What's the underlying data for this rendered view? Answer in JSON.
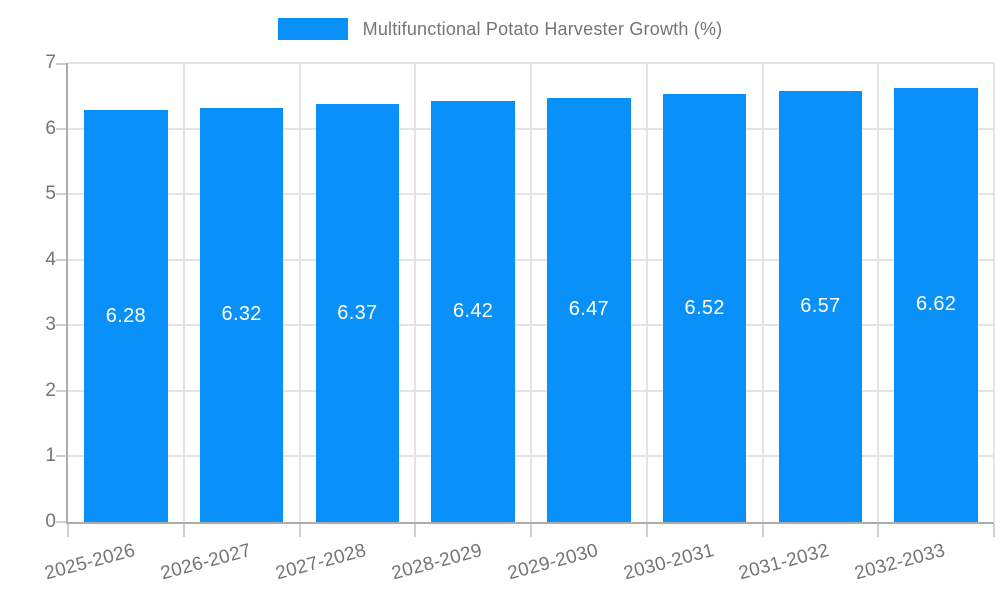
{
  "chart_data": {
    "type": "bar",
    "title": "Multifunctional Potato Harvester Growth (%)",
    "categories": [
      "2025-2026",
      "2026-2027",
      "2027-2028",
      "2028-2029",
      "2029-2030",
      "2030-2031",
      "2031-2032",
      "2032-2033"
    ],
    "values": [
      6.28,
      6.32,
      6.37,
      6.42,
      6.47,
      6.52,
      6.57,
      6.62
    ],
    "value_labels": [
      "6.28",
      "6.32",
      "6.37",
      "6.42",
      "6.47",
      "6.52",
      "6.57",
      "6.62"
    ],
    "xlabel": "",
    "ylabel": "",
    "ylim": [
      0,
      7
    ],
    "ytick_interval": 1,
    "ytick_labels": [
      "0",
      "1",
      "2",
      "3",
      "4",
      "5",
      "6",
      "7"
    ],
    "grid": true,
    "legend_position": "top",
    "colors": {
      "bar": "#0990F9",
      "grid": "#E4E4E4",
      "axis": "#ACACAC",
      "tick_mark": "#CFCFCF",
      "tick_text": "#757575",
      "value_label": "#FFFFFF",
      "legend_text": "#757575",
      "background": "#FFFFFF"
    }
  }
}
